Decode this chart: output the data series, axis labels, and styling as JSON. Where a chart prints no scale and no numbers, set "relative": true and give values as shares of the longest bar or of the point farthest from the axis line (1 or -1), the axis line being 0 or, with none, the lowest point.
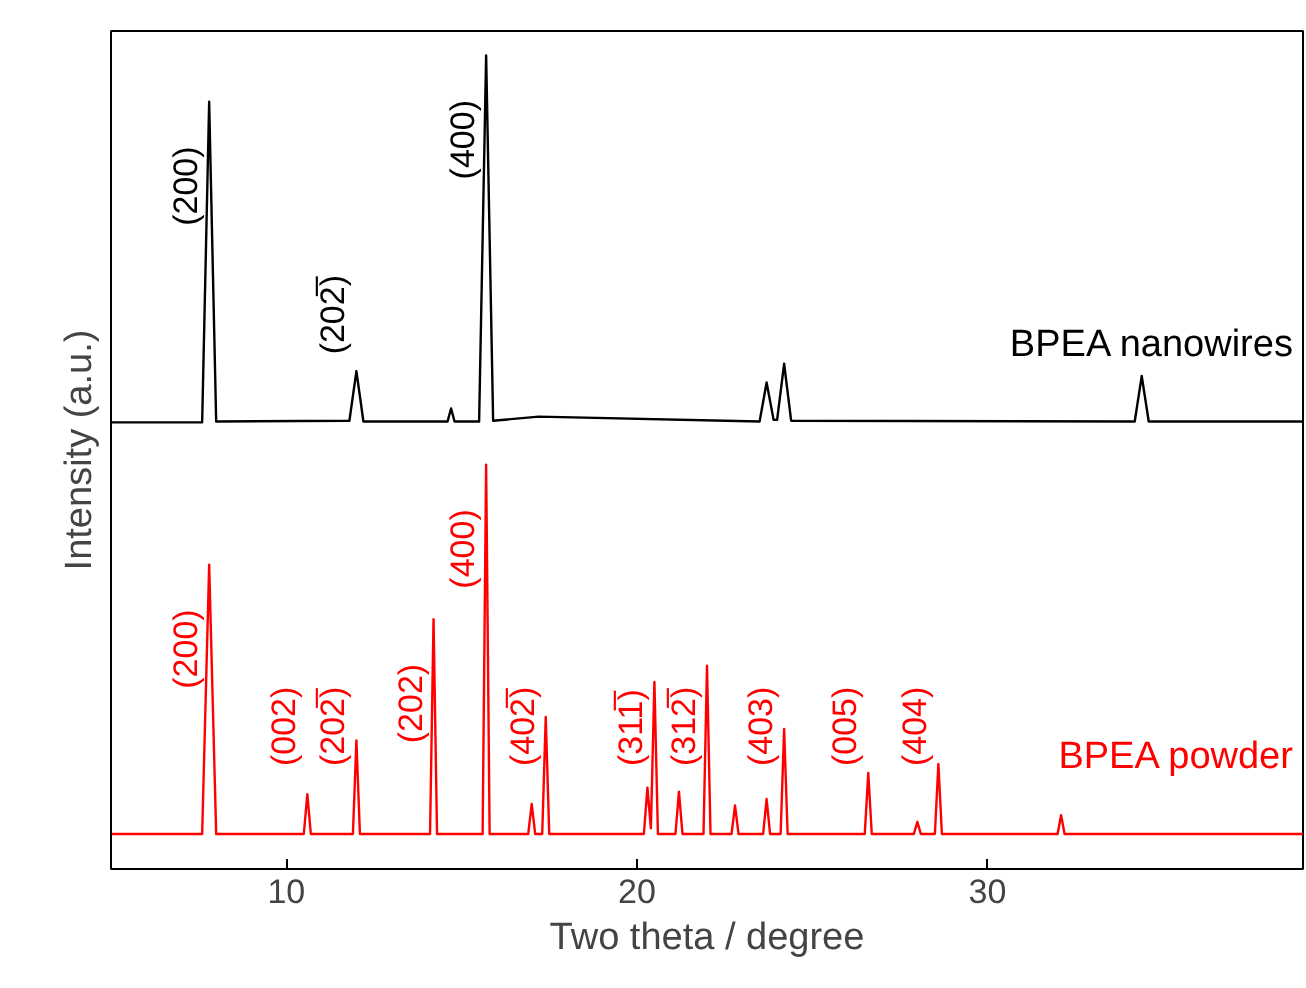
{
  "chart_data": {
    "type": "line",
    "relative": true,
    "xlabel": "Two theta / degree",
    "ylabel": "Intensity (a.u.)",
    "xlim": [
      5,
      39
    ],
    "xticks": [
      10,
      20,
      30
    ],
    "grid": false,
    "legend": false,
    "marker": "none",
    "line_style": "solid",
    "tick_labels": "x",
    "series": [
      {
        "name": "BPEA nanowires",
        "color": "#000000",
        "x": [
          5,
          7.6,
          7.8,
          8.0,
          11.8,
          12.0,
          12.2,
          14.6,
          14.7,
          14.8,
          15.5,
          15.7,
          15.9,
          17.2,
          23.5,
          23.7,
          23.9,
          24.0,
          24.2,
          24.4,
          34.2,
          34.4,
          34.6,
          39
        ],
        "values": [
          0.549,
          0.549,
          0.943,
          0.55,
          0.551,
          0.612,
          0.55,
          0.55,
          0.566,
          0.55,
          0.55,
          1.0,
          0.551,
          0.556,
          0.55,
          0.598,
          0.552,
          0.552,
          0.621,
          0.551,
          0.55,
          0.606,
          0.55,
          0.55
        ]
      },
      {
        "name": "BPEA powder",
        "color": "#ff0000",
        "x": [
          5,
          7.6,
          7.8,
          8.0,
          10.5,
          10.6,
          10.7,
          11.9,
          12.0,
          12.1,
          14.1,
          14.2,
          14.3,
          15.6,
          15.7,
          15.8,
          16.9,
          17.0,
          17.1,
          17.3,
          17.4,
          17.5,
          20.2,
          20.3,
          20.4,
          20.5,
          20.6,
          21.1,
          21.2,
          21.3,
          21.9,
          22.0,
          22.1,
          22.7,
          22.8,
          22.9,
          23.6,
          23.7,
          23.8,
          24.1,
          24.2,
          24.3,
          26.5,
          26.6,
          26.7,
          27.9,
          28.0,
          28.1,
          28.5,
          28.6,
          28.7,
          32.0,
          32.1,
          32.2,
          39
        ],
        "values": [
          0.043,
          0.043,
          0.374,
          0.043,
          0.043,
          0.092,
          0.043,
          0.043,
          0.158,
          0.043,
          0.043,
          0.307,
          0.043,
          0.043,
          0.497,
          0.043,
          0.043,
          0.08,
          0.043,
          0.043,
          0.187,
          0.043,
          0.043,
          0.1,
          0.05,
          0.23,
          0.043,
          0.043,
          0.095,
          0.043,
          0.043,
          0.25,
          0.043,
          0.043,
          0.078,
          0.043,
          0.043,
          0.086,
          0.043,
          0.043,
          0.172,
          0.043,
          0.043,
          0.118,
          0.043,
          0.043,
          0.058,
          0.043,
          0.043,
          0.129,
          0.043,
          0.043,
          0.066,
          0.043,
          0.043
        ]
      }
    ],
    "annotations": [
      {
        "text": "(200)",
        "x": 7.8,
        "y": 0.943
      },
      {
        "text": "(202̅)",
        "x": 12.0,
        "y": 0.612
      },
      {
        "text": "(400)",
        "x": 15.7,
        "y": 1.0
      },
      {
        "text": "(200)",
        "x": 7.8,
        "y": 0.374
      },
      {
        "text": "(002)",
        "x": 10.6,
        "y": 0.092
      },
      {
        "text": "(202̅)",
        "x": 12.0,
        "y": 0.158
      },
      {
        "text": "(202)",
        "x": 14.2,
        "y": 0.307
      },
      {
        "text": "(400)",
        "x": 15.7,
        "y": 0.497
      },
      {
        "text": "(402̅)",
        "x": 17.4,
        "y": 0.187
      },
      {
        "text": "(311̅)",
        "x": 20.5,
        "y": 0.23
      },
      {
        "text": "(312̅)",
        "x": 22.0,
        "y": 0.25
      },
      {
        "text": "(403)",
        "x": 24.2,
        "y": 0.172
      },
      {
        "text": "(005)",
        "x": 26.6,
        "y": 0.118
      },
      {
        "text": "(404)",
        "x": 28.6,
        "y": 0.129
      }
    ]
  }
}
